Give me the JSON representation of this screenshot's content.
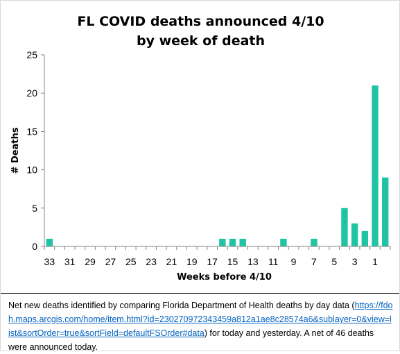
{
  "chart_data": {
    "type": "bar",
    "title_lines": [
      "FL COVID deaths announced 4/10",
      "by week of death"
    ],
    "xlabel": "Weeks before 4/10",
    "ylabel": "# Deaths",
    "ylim": [
      0,
      25
    ],
    "yticks": [
      0,
      5,
      10,
      15,
      20,
      25
    ],
    "grid": false,
    "bar_color": "#20c4a4",
    "x_order": "descending",
    "categories": [
      33,
      32,
      31,
      30,
      29,
      28,
      27,
      26,
      25,
      24,
      23,
      22,
      21,
      20,
      19,
      18,
      17,
      16,
      15,
      14,
      13,
      12,
      11,
      10,
      9,
      8,
      7,
      6,
      5,
      4,
      3,
      2,
      1,
      0
    ],
    "xtick_labels": [
      33,
      31,
      29,
      27,
      25,
      23,
      21,
      19,
      17,
      15,
      13,
      11,
      9,
      7,
      5,
      3,
      1
    ],
    "values": [
      1,
      0,
      0,
      0,
      0,
      0,
      0,
      0,
      0,
      0,
      0,
      0,
      0,
      0,
      0,
      0,
      0,
      1,
      1,
      1,
      0,
      0,
      0,
      1,
      0,
      0,
      1,
      0,
      0,
      5,
      3,
      2,
      21,
      9
    ]
  },
  "caption": {
    "text_before": "Net new deaths identified by comparing Florida Department of Health deaths by day data (",
    "link": "https://fdoh.maps.arcgis.com/home/item.html?id=230270972343459a812a1ae8c28574a6&sublayer=0&view=list&sortOrder=true&sortField=defaultFSOrder#data",
    "text_after": ") for  today and yesterday. A net of 46 deaths were announced today."
  }
}
